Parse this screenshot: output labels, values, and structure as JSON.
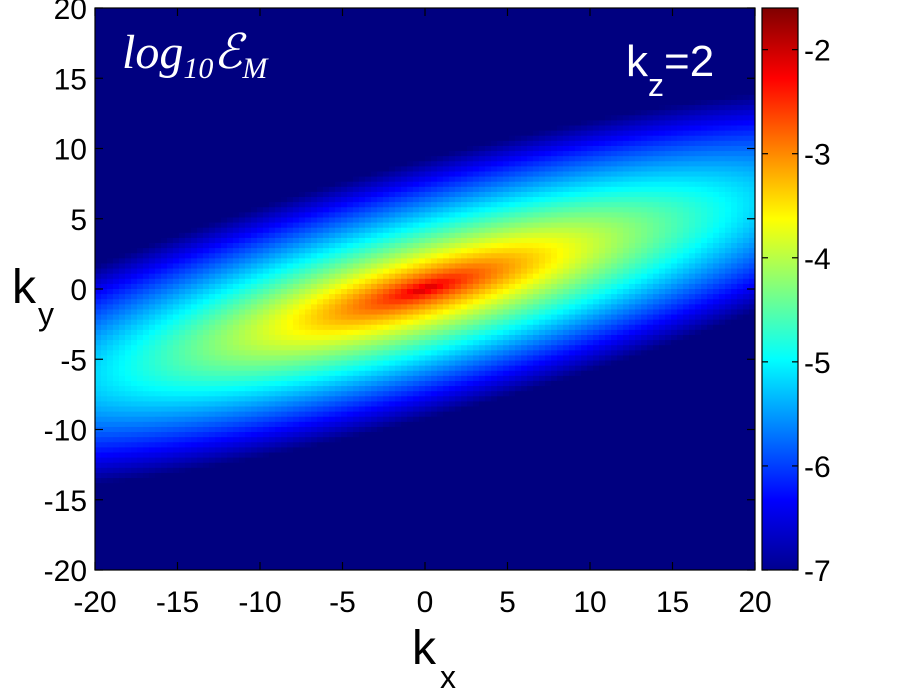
{
  "chart_data": {
    "type": "heatmap",
    "title": "",
    "x": {
      "label": "k",
      "label_sub": "x",
      "range": [
        -20,
        20
      ],
      "ticks": [
        "-20",
        "-15",
        "-10",
        "-5",
        "0",
        "5",
        "10",
        "15",
        "20"
      ]
    },
    "y": {
      "label": "k",
      "label_sub": "y",
      "range": [
        -20,
        20
      ],
      "ticks": [
        "20",
        "15",
        "10",
        "5",
        "0",
        "-5",
        "-10",
        "-15",
        "-20"
      ]
    },
    "colorbar": {
      "range": [
        -7,
        -1.6
      ],
      "ticks": [
        "-2",
        "-3",
        "-4",
        "-5",
        "-6",
        "-7"
      ],
      "colormap": "jet"
    },
    "quantity_label": {
      "base": "log",
      "sub1": "10",
      "symbol": "ℰ",
      "sub2": "M"
    },
    "slice_label": {
      "base": "k",
      "sub": "z",
      "rest": "=2"
    },
    "field": {
      "peak_value": -1.9,
      "peak_center": [
        0,
        0
      ],
      "tilt_deg": 18,
      "description_values": {
        "at_center": -2.2,
        "green_ring": -4.2,
        "cyan_ring": -5.2,
        "far_corners": -7.0
      }
    },
    "grid": false,
    "legend": "colorbar-right"
  }
}
